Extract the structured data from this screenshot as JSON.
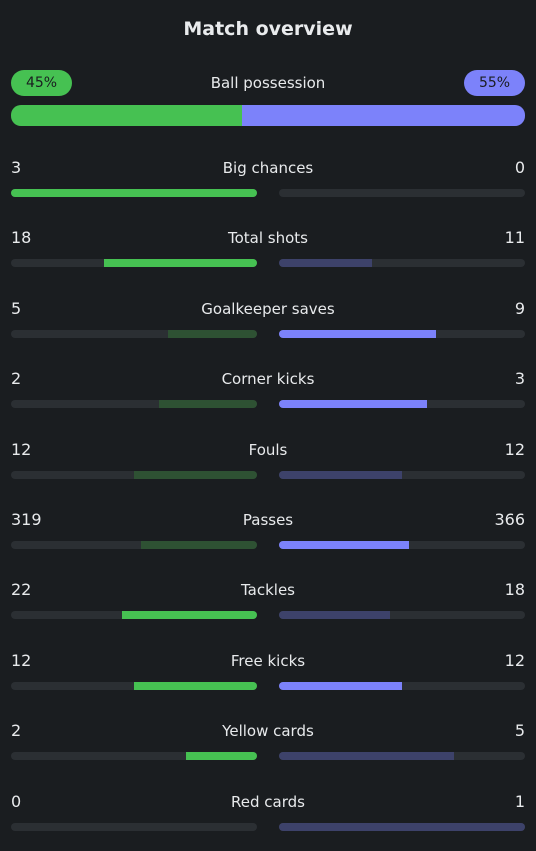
{
  "title": "Match overview",
  "possession": {
    "label": "Ball possession",
    "home": "45%",
    "away": "55%",
    "home_fraction": 0.45,
    "away_fraction": 0.55
  },
  "colors": {
    "home": "#46c152",
    "home_dim": "#2e5133",
    "away": "#7c82fa",
    "away_dim": "#3d426a",
    "track": "#2b2f33",
    "background": "#1a1d20"
  },
  "stats": [
    {
      "label": "Big chances",
      "home": "3",
      "away": "0",
      "home_fraction": 1.0,
      "away_fraction": 0.0,
      "home_leads": true,
      "away_leads": false
    },
    {
      "label": "Total shots",
      "home": "18",
      "away": "11",
      "home_fraction": 0.62,
      "away_fraction": 0.38,
      "home_leads": true,
      "away_leads": false
    },
    {
      "label": "Goalkeeper saves",
      "home": "5",
      "away": "9",
      "home_fraction": 0.36,
      "away_fraction": 0.64,
      "home_leads": false,
      "away_leads": true
    },
    {
      "label": "Corner kicks",
      "home": "2",
      "away": "3",
      "home_fraction": 0.4,
      "away_fraction": 0.6,
      "home_leads": false,
      "away_leads": true
    },
    {
      "label": "Fouls",
      "home": "12",
      "away": "12",
      "home_fraction": 0.5,
      "away_fraction": 0.5,
      "home_leads": false,
      "away_leads": false
    },
    {
      "label": "Passes",
      "home": "319",
      "away": "366",
      "home_fraction": 0.47,
      "away_fraction": 0.53,
      "home_leads": false,
      "away_leads": true
    },
    {
      "label": "Tackles",
      "home": "22",
      "away": "18",
      "home_fraction": 0.55,
      "away_fraction": 0.45,
      "home_leads": true,
      "away_leads": false
    },
    {
      "label": "Free kicks",
      "home": "12",
      "away": "12",
      "home_fraction": 0.5,
      "away_fraction": 0.5,
      "home_leads": true,
      "away_leads": true
    },
    {
      "label": "Yellow cards",
      "home": "2",
      "away": "5",
      "home_fraction": 0.29,
      "away_fraction": 0.71,
      "home_leads": true,
      "away_leads": false
    },
    {
      "label": "Red cards",
      "home": "0",
      "away": "1",
      "home_fraction": 0.0,
      "away_fraction": 1.0,
      "home_leads": false,
      "away_leads": false
    }
  ]
}
